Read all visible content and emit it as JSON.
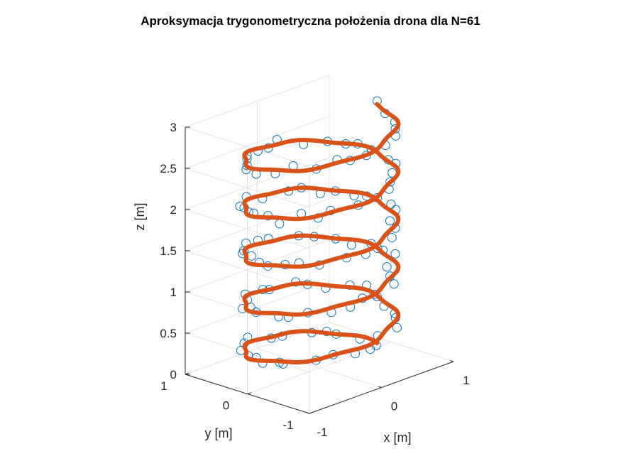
{
  "chart_data": {
    "type": "scatter",
    "title": "Aproksymacja trygonometryczna położenia drona dla N=61",
    "xlabel": "x [m]",
    "ylabel": "y [m]",
    "zlabel": "z [m]",
    "xlim": [
      -1,
      1
    ],
    "ylim": [
      -1,
      1
    ],
    "zlim": [
      0,
      3
    ],
    "x_ticks": [
      "-1",
      "0",
      "1"
    ],
    "y_ticks": [
      "-1",
      "0",
      "1"
    ],
    "z_ticks": [
      "0",
      "0.5",
      "1",
      "1.5",
      "2",
      "2.5",
      "3"
    ],
    "grid": true,
    "series": [
      {
        "kind": "markers",
        "marker": "circle-open",
        "color": "#0072BD",
        "turns": 5,
        "radius": 0.8,
        "z_range": [
          0.05,
          2.95
        ],
        "count": 122,
        "noise": 0.08
      },
      {
        "kind": "line",
        "color": "#D95319",
        "turns": 5,
        "radius": 0.8,
        "z_range": [
          0.05,
          2.95
        ]
      }
    ]
  }
}
